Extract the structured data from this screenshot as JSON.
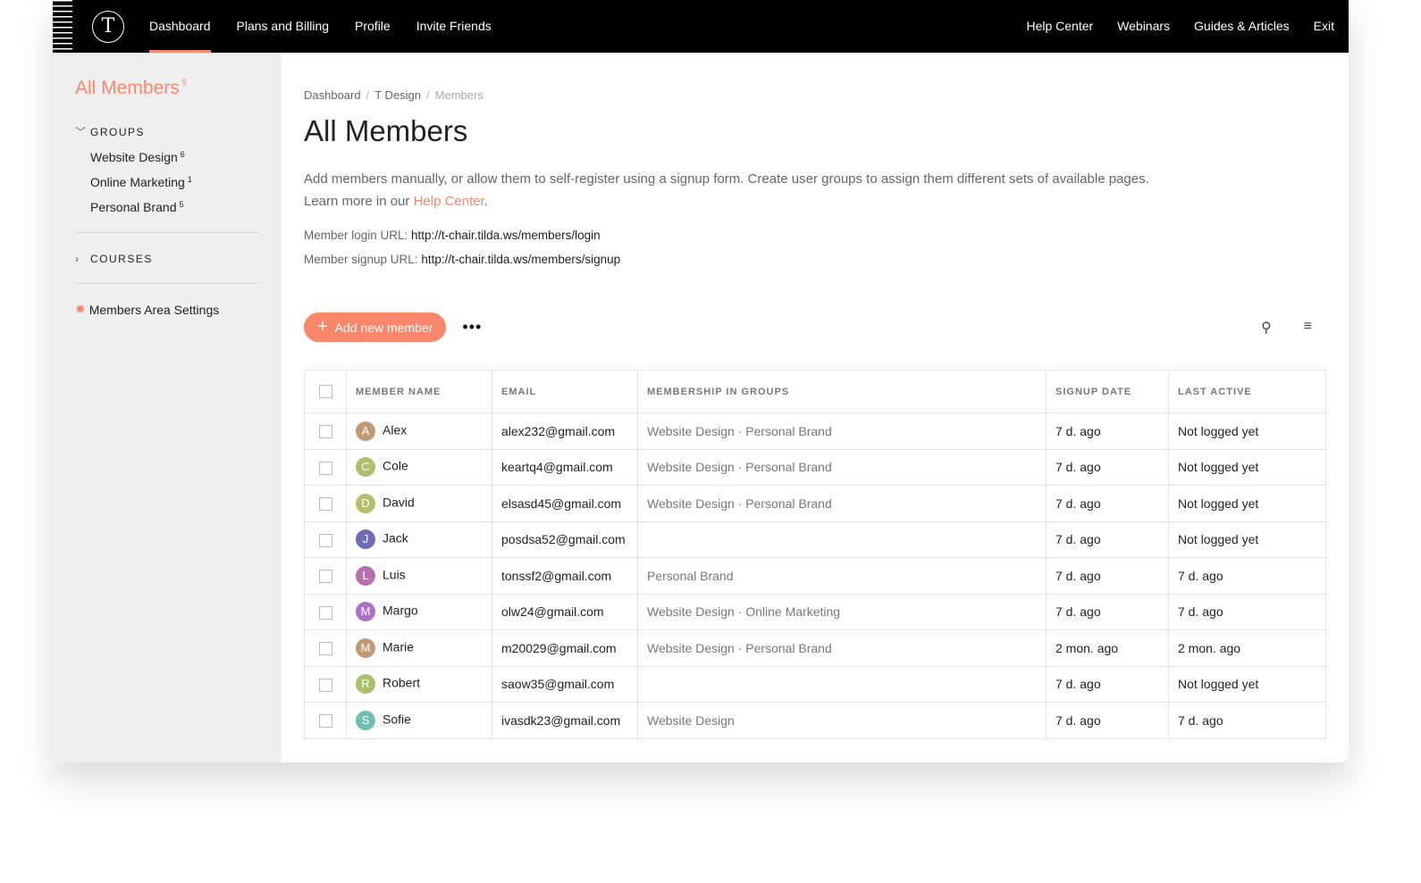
{
  "nav": {
    "left": [
      "Dashboard",
      "Plans and Billing",
      "Profile",
      "Invite Friends"
    ],
    "right": [
      "Help Center",
      "Webinars",
      "Guides & Articles",
      "Exit"
    ],
    "active": "Dashboard",
    "logo": "T"
  },
  "sidebar": {
    "title": "All Members",
    "count": "9",
    "groups_label": "GROUPS",
    "groups": [
      {
        "label": "Website Design",
        "count": "6"
      },
      {
        "label": "Online Marketing",
        "count": "1"
      },
      {
        "label": "Personal Brand",
        "count": "5"
      }
    ],
    "courses_label": "COURSES",
    "settings_label": "Members Area Settings"
  },
  "breadcrumb": [
    "Dashboard",
    "T Design",
    "Members"
  ],
  "title": "All Members",
  "description": "Add members manually, or allow them to self-register using a signup form. Create user groups to assign them different sets of available pages.",
  "learn_more": "Learn more in our ",
  "help_link": "Help Center",
  "login_label": "Member login URL: ",
  "login_url": "http://t-chair.tilda.ws/members/login",
  "signup_label": "Member signup URL: ",
  "signup_url": "http://t-chair.tilda.ws/members/signup",
  "toolbar": {
    "add_label": "Add new member",
    "more": "•••"
  },
  "accent": "#fa876b",
  "table": {
    "headers": [
      "MEMBER NAME",
      "EMAIL",
      "MEMBERSHIP IN GROUPS",
      "SIGNUP DATE",
      "LAST ACTIVE"
    ],
    "rows": [
      {
        "initial": "A",
        "color": "#c09a75",
        "name": "Alex",
        "email": "alex232@gmail.com",
        "groups": "Website Design · Personal Brand",
        "signup": "7 d. ago",
        "active": "Not logged yet"
      },
      {
        "initial": "C",
        "color": "#a9c06c",
        "name": "Cole",
        "email": "keartq4@gmail.com",
        "groups": "Website Design · Personal Brand",
        "signup": "7 d. ago",
        "active": "Not logged yet"
      },
      {
        "initial": "D",
        "color": "#b7bd6a",
        "name": "David",
        "email": "elsasd45@gmail.com",
        "groups": "Website Design · Personal Brand",
        "signup": "7 d. ago",
        "active": "Not logged yet"
      },
      {
        "initial": "J",
        "color": "#6f6db8",
        "name": "Jack",
        "email": "posdsa52@gmail.com",
        "groups": "",
        "signup": "7 d. ago",
        "active": "Not logged yet"
      },
      {
        "initial": "L",
        "color": "#b86fb0",
        "name": "Luis",
        "email": "tonssf2@gmail.com",
        "groups": "Personal Brand",
        "signup": "7 d. ago",
        "active": "7 d. ago"
      },
      {
        "initial": "M",
        "color": "#b06fc8",
        "name": "Margo",
        "email": "olw24@gmail.com",
        "groups": "Website Design · Online Marketing",
        "signup": "7 d. ago",
        "active": "7 d. ago"
      },
      {
        "initial": "M",
        "color": "#c09a75",
        "name": "Marie",
        "email": "m20029@gmail.com",
        "groups": "Website Design · Personal Brand",
        "signup": "2 mon. ago",
        "active": "2 mon. ago"
      },
      {
        "initial": "R",
        "color": "#a9c06c",
        "name": "Robert",
        "email": "saow35@gmail.com",
        "groups": "",
        "signup": "7 d. ago",
        "active": "Not logged yet"
      },
      {
        "initial": "S",
        "color": "#6fbfb5",
        "name": "Sofie",
        "email": "ivasdk23@gmail.com",
        "groups": "Website Design",
        "signup": "7 d. ago",
        "active": "7 d. ago"
      }
    ]
  }
}
